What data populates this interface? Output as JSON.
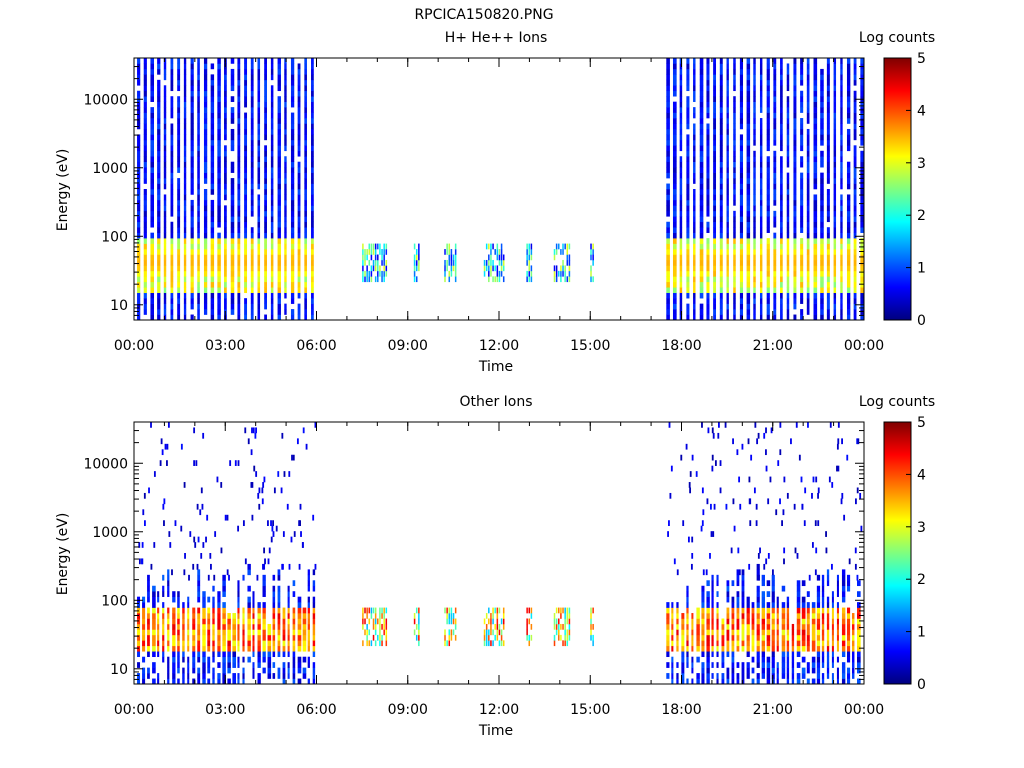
{
  "figure_title": "RPCICA150820.PNG",
  "chart_data": [
    {
      "type": "heatmap",
      "title": "H+ He++ Ions",
      "xlabel": "Time",
      "ylabel": "Energy (eV)",
      "x_ticks": [
        "00:00",
        "03:00",
        "06:00",
        "09:00",
        "12:00",
        "15:00",
        "18:00",
        "21:00",
        "00:00"
      ],
      "x_range_hours": [
        0,
        24
      ],
      "y_scale": "log",
      "y_range": [
        6,
        40000
      ],
      "y_ticks": [
        10,
        100,
        1000,
        10000
      ],
      "y_tick_labels": [
        "10",
        "100",
        "1000",
        "10000"
      ],
      "colorbar": {
        "label": "Log counts",
        "range": [
          0,
          5
        ],
        "ticks": [
          "0",
          "1",
          "2",
          "3",
          "4",
          "5"
        ],
        "colormap": [
          "#00007f",
          "#0000ff",
          "#007fff",
          "#00ffff",
          "#7fff7f",
          "#ffff00",
          "#ff7f00",
          "#ff0000",
          "#7f0000"
        ]
      },
      "active_intervals_hours": [
        [
          0.1,
          6.0
        ],
        [
          7.5,
          15.1
        ],
        [
          17.5,
          23.9
        ]
      ],
      "dense_full_range_intervals_hours": [
        [
          0.1,
          6.0
        ],
        [
          17.5,
          23.9
        ]
      ],
      "sparse_low_energy_bursts_hours": [
        [
          7.5,
          8.3
        ],
        [
          9.2,
          9.4
        ],
        [
          10.2,
          10.6
        ],
        [
          11.5,
          12.2
        ],
        [
          12.9,
          13.1
        ],
        [
          13.8,
          14.3
        ],
        [
          15.0,
          15.1
        ]
      ],
      "peak_band_energy_eV": [
        25,
        70
      ],
      "peak_band_log_counts": [
        2.5,
        3.5
      ]
    },
    {
      "type": "heatmap",
      "title": "Other Ions",
      "xlabel": "Time",
      "ylabel": "Energy (eV)",
      "x_ticks": [
        "00:00",
        "03:00",
        "06:00",
        "09:00",
        "12:00",
        "15:00",
        "18:00",
        "21:00",
        "00:00"
      ],
      "x_range_hours": [
        0,
        24
      ],
      "y_scale": "log",
      "y_range": [
        6,
        40000
      ],
      "y_ticks": [
        10,
        100,
        1000,
        10000
      ],
      "y_tick_labels": [
        "10",
        "100",
        "1000",
        "10000"
      ],
      "colorbar": {
        "label": "Log counts",
        "range": [
          0,
          5
        ],
        "ticks": [
          "0",
          "1",
          "2",
          "3",
          "4",
          "5"
        ],
        "colormap": [
          "#00007f",
          "#0000ff",
          "#007fff",
          "#00ffff",
          "#7fff7f",
          "#ffff00",
          "#ff7f00",
          "#ff0000",
          "#7f0000"
        ]
      },
      "active_intervals_hours": [
        [
          0.1,
          6.0
        ],
        [
          7.5,
          15.1
        ],
        [
          17.5,
          23.9
        ]
      ],
      "dense_low_energy_intervals_hours": [
        [
          0.1,
          6.0
        ],
        [
          17.5,
          23.9
        ]
      ],
      "sparse_low_energy_bursts_hours": [
        [
          7.5,
          8.3
        ],
        [
          9.2,
          9.4
        ],
        [
          10.2,
          10.6
        ],
        [
          11.5,
          12.2
        ],
        [
          12.9,
          13.1
        ],
        [
          13.8,
          14.3
        ],
        [
          15.0,
          15.1
        ]
      ],
      "peak_band_energy_eV": [
        25,
        70
      ],
      "peak_band_log_counts": [
        3.0,
        4.5
      ],
      "sparse_high_energy_speckle_eV": [
        200,
        40000
      ]
    }
  ]
}
